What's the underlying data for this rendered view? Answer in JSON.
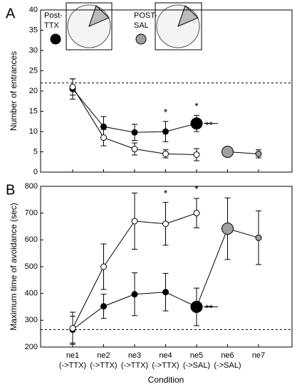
{
  "chart_data": [
    {
      "type": "line",
      "panel": "A",
      "ylabel": "Number of entrances",
      "ylim": [
        0,
        40
      ],
      "yticks": [
        0,
        5,
        10,
        15,
        20,
        25,
        30,
        35,
        40
      ],
      "reference_line": 22,
      "series": [
        {
          "color": "#000000",
          "values": [
            20.5,
            11.2,
            9.8,
            10,
            12,
            null,
            null
          ],
          "errors": [
            2.5,
            2.5,
            2,
            2.5,
            2,
            null,
            null
          ],
          "large_points": [
            4
          ]
        },
        {
          "color": "#ffffff",
          "values": [
            21,
            8.5,
            5.7,
            4.5,
            4.3,
            null,
            null
          ],
          "errors": [
            2,
            2,
            1.5,
            1,
            1.5,
            null,
            null
          ],
          "large_points": []
        },
        {
          "color": "#a0a0a0",
          "values": [
            null,
            null,
            null,
            null,
            null,
            5,
            4.5
          ],
          "errors": [
            null,
            null,
            null,
            null,
            null,
            0.5,
            1
          ],
          "large_points": [
            5
          ]
        }
      ],
      "legend": [
        {
          "lines": [
            "Post-",
            "TTX"
          ],
          "color": "#000000"
        },
        {
          "lines": [
            "POST-",
            "SAL"
          ],
          "color": "#a0a0a0"
        }
      ],
      "annotations": [
        {
          "text": "*",
          "index": 3
        },
        {
          "text": "*",
          "index": 4
        },
        {
          "text": "**",
          "index": 4,
          "series": 0
        }
      ]
    },
    {
      "type": "line",
      "panel": "B",
      "ylabel": "Maximum time of avoidance (sec)",
      "xlabel": "Condition",
      "ylim": [
        200,
        800
      ],
      "yticks": [
        200,
        300,
        400,
        500,
        600,
        700,
        800
      ],
      "reference_line": 265,
      "bridge": true,
      "categories": [
        "ne1",
        "ne2",
        "ne3",
        "ne4",
        "ne5",
        "ne6",
        "ne7"
      ],
      "sublabels": [
        "(->TTX)",
        "(->TTX)",
        "(->TTX)",
        "(->TTX)",
        "(->SAL)",
        "(->SAL)",
        null
      ],
      "series": [
        {
          "color": "#000000",
          "values": [
            265,
            352,
            397,
            405,
            350,
            null,
            null
          ],
          "errors": [
            50,
            45,
            80,
            70,
            70,
            null,
            null
          ],
          "large_points": [
            4
          ]
        },
        {
          "color": "#ffffff",
          "values": [
            270,
            500,
            670,
            660,
            700,
            null,
            null
          ],
          "errors": [
            60,
            85,
            105,
            80,
            55,
            null,
            null
          ],
          "large_points": []
        },
        {
          "color": "#a0a0a0",
          "values": [
            null,
            null,
            null,
            null,
            null,
            642,
            608
          ],
          "errors": [
            null,
            null,
            null,
            null,
            null,
            115,
            100
          ],
          "large_points": [
            5
          ]
        }
      ],
      "annotations": [
        {
          "text": "*",
          "index": 3
        },
        {
          "text": "*",
          "index": 4
        },
        {
          "text": "**",
          "index": 4,
          "series": 0
        }
      ]
    }
  ]
}
